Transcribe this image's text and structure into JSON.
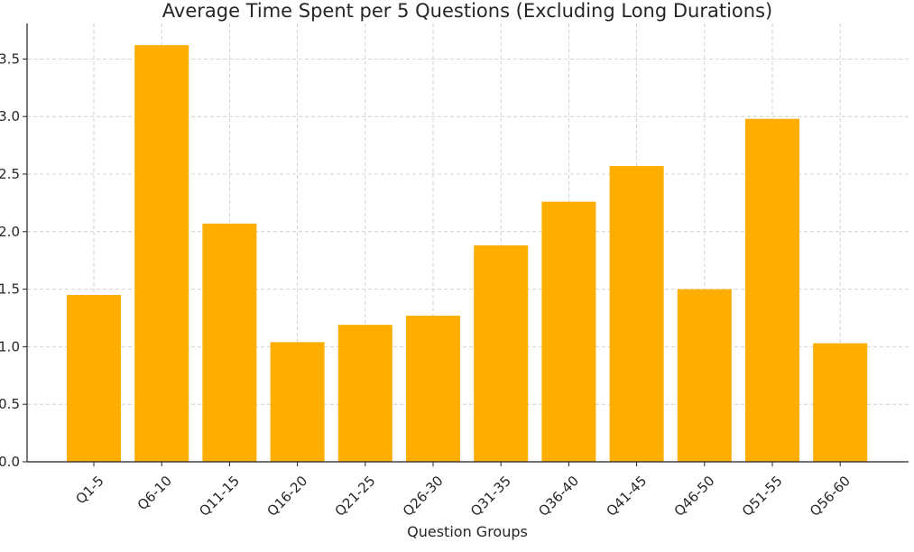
{
  "chart_data": {
    "type": "bar",
    "title": "Average Time Spent per 5 Questions (Excluding Long Durations)",
    "xlabel": "Question Groups",
    "ylabel": "",
    "categories": [
      "Q1-5",
      "Q6-10",
      "Q11-15",
      "Q16-20",
      "Q21-25",
      "Q26-30",
      "Q31-35",
      "Q36-40",
      "Q41-45",
      "Q46-50",
      "Q51-55",
      "Q56-60"
    ],
    "values": [
      1.45,
      3.62,
      2.07,
      1.04,
      1.19,
      1.27,
      1.88,
      2.26,
      2.57,
      1.5,
      2.98,
      1.03
    ],
    "ylim": [
      0,
      3.8
    ],
    "yticks": [
      "0.0",
      "0.5",
      "1.0",
      "1.5",
      "2.0",
      "2.5",
      "3.0",
      "3.5"
    ],
    "grid": true,
    "bar_color": "#FFAE00",
    "grid_color": "#C8C8C8",
    "axis_color": "#222222"
  }
}
